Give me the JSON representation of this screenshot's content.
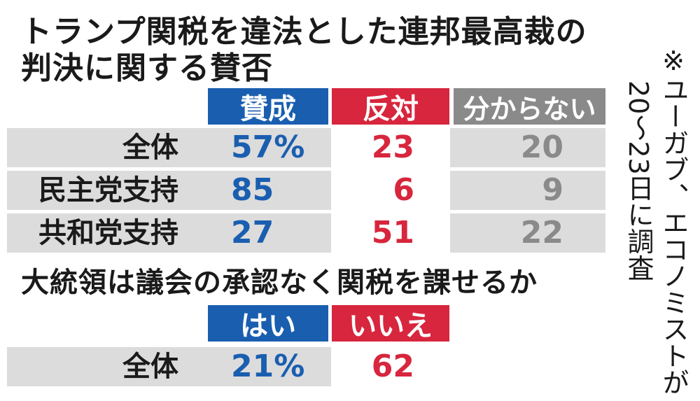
{
  "colors": {
    "blue": "#1a5eb0",
    "red": "#d7263d",
    "gray": "#8a8a8a",
    "row_bg": "#dcdcdc"
  },
  "note": {
    "col1": "※ユーガブ、エコノミストが",
    "col2": "20〜23日に調査"
  },
  "chart_data": [
    {
      "type": "table",
      "title": "トランプ関税を違法とした連邦最高裁の判決に関する賛否",
      "columns": [
        "賛成",
        "反対",
        "分からない"
      ],
      "rows": [
        {
          "label": "全体",
          "values": [
            "57%",
            "23",
            "20"
          ]
        },
        {
          "label": "民主党支持",
          "values": [
            "85",
            "6",
            "9"
          ]
        },
        {
          "label": "共和党支持",
          "values": [
            "27",
            "51",
            "22"
          ]
        }
      ]
    },
    {
      "type": "table",
      "title": "大統領は議会の承認なく関税を課せるか",
      "columns": [
        "はい",
        "いいえ"
      ],
      "rows": [
        {
          "label": "全体",
          "values": [
            "21%",
            "62"
          ]
        }
      ]
    }
  ]
}
